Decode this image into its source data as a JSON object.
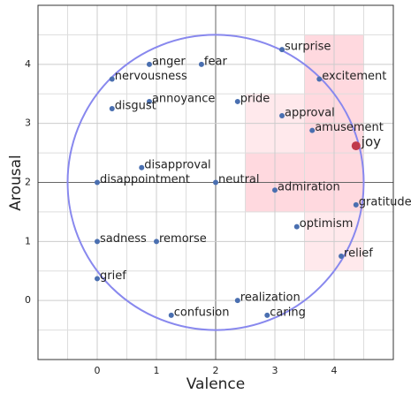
{
  "chart_data": {
    "type": "scatter",
    "xlabel": "Valence",
    "ylabel": "Arousal",
    "xlim": [
      -1,
      5
    ],
    "ylim": [
      -1,
      5
    ],
    "xticks": [
      0,
      1,
      2,
      3,
      4
    ],
    "yticks": [
      0,
      1,
      2,
      3,
      4
    ],
    "xminor": [
      -0.5,
      0.5,
      1.5,
      2.5,
      3.5,
      4.5
    ],
    "yminor": [
      -0.5,
      0.5,
      1.5,
      2.5,
      3.5,
      4.5
    ],
    "grid": true,
    "circle": {
      "cx": 2,
      "cy": 2,
      "r": 2.5,
      "color": "#8888ee"
    },
    "regions": [
      {
        "x": [
          3.5,
          4.5
        ],
        "y": [
          0.5,
          4.5
        ],
        "color": "#ffb6c1"
      },
      {
        "x": [
          2.5,
          4.5
        ],
        "y": [
          1.5,
          3.5
        ],
        "color": "#ffb6c1"
      },
      {
        "x": [
          2.5,
          3.5
        ],
        "y": [
          1.5,
          2.5
        ],
        "color": "#ffb6c1"
      },
      {
        "x": [
          3.5,
          4.5
        ],
        "y": [
          3.5,
          4.5
        ],
        "color": "#ffb6c1"
      }
    ],
    "labels": [
      "surprise",
      "fear",
      "anger",
      "nervousness",
      "excitement",
      "annoyance",
      "pride",
      "disgust",
      "approval",
      "amusement",
      "joy",
      "disapproval",
      "disappointment",
      "neutral",
      "admiration",
      "gratitude",
      "optimism",
      "sadness",
      "remorse",
      "relief",
      "grief",
      "realization",
      "caring",
      "confusion"
    ],
    "x": [
      3.12,
      1.76,
      0.88,
      0.25,
      3.75,
      0.88,
      2.37,
      0.25,
      3.12,
      3.63,
      4.37,
      0.75,
      0,
      2,
      3.0,
      4.37,
      3.37,
      0,
      1,
      4.12,
      0,
      2.37,
      2.87,
      1.25
    ],
    "y": [
      4.25,
      4.0,
      4.0,
      3.75,
      3.75,
      3.37,
      3.37,
      3.25,
      3.13,
      2.88,
      2.62,
      2.25,
      2.0,
      2,
      1.87,
      1.62,
      1.25,
      1.0,
      1,
      0.75,
      0.37,
      0,
      -0.25,
      -0.25
    ],
    "colors": [
      "#4a6fb0",
      "#4a6fb0",
      "#4a6fb0",
      "#4a6fb0",
      "#4a6fb0",
      "#4a6fb0",
      "#4a6fb0",
      "#4a6fb0",
      "#4a6fb0",
      "#4a6fb0",
      "#c0394b",
      "#4a6fb0",
      "#4a6fb0",
      "#4a6fb0",
      "#4a6fb0",
      "#4a6fb0",
      "#4a6fb0",
      "#4a6fb0",
      "#4a6fb0",
      "#4a6fb0",
      "#4a6fb0",
      "#4a6fb0",
      "#4a6fb0",
      "#4a6fb0"
    ]
  }
}
